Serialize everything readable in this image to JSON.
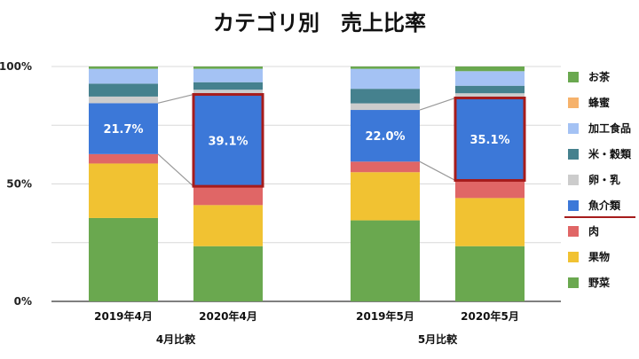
{
  "chart_data": {
    "type": "bar",
    "stacked": true,
    "normalized": true,
    "title": "カテゴリ別　売上比率",
    "yticks": [
      "0%",
      "50%",
      "100%"
    ],
    "ylim": [
      0,
      100
    ],
    "categories": [
      "2019年4月",
      "2020年4月",
      "2019年5月",
      "2020年5月"
    ],
    "groups": [
      {
        "label": "4月比較",
        "members": [
          0,
          1
        ]
      },
      {
        "label": "5月比較",
        "members": [
          2,
          3
        ]
      }
    ],
    "series": [
      {
        "name": "野菜",
        "color": "#6aa84f",
        "values": [
          35.5,
          23.5,
          34.5,
          23.5
        ]
      },
      {
        "name": "果物",
        "color": "#f1c232",
        "values": [
          23.2,
          17.5,
          20.5,
          20.5
        ]
      },
      {
        "name": "肉",
        "color": "#e06666",
        "values": [
          4.0,
          8.0,
          4.5,
          7.5
        ]
      },
      {
        "name": "魚介類",
        "color": "#3c78d8",
        "values": [
          21.7,
          39.1,
          22.0,
          35.1
        ]
      },
      {
        "name": "卵・乳",
        "color": "#cccccc",
        "values": [
          2.8,
          2.0,
          2.8,
          2.0
        ]
      },
      {
        "name": "米・穀類",
        "color": "#45818e",
        "values": [
          5.5,
          3.2,
          6.2,
          3.2
        ]
      },
      {
        "name": "加工食品",
        "color": "#a4c2f4",
        "values": [
          6.3,
          5.7,
          8.5,
          6.2
        ]
      },
      {
        "name": "蜂蜜",
        "color": "#f6b26b",
        "values": [
          0.0,
          0.0,
          0.0,
          0.0
        ]
      },
      {
        "name": "お茶",
        "color": "#6aa84f",
        "values": [
          1.0,
          1.0,
          1.0,
          2.0
        ]
      }
    ],
    "data_labels": [
      {
        "category": 0,
        "series": "魚介類",
        "text": "21.7%"
      },
      {
        "category": 1,
        "series": "魚介類",
        "text": "39.1%"
      },
      {
        "category": 2,
        "series": "魚介類",
        "text": "22.0%"
      },
      {
        "category": 3,
        "series": "魚介類",
        "text": "35.1%"
      }
    ],
    "highlight": {
      "series": "魚介類",
      "categories": [
        1,
        3
      ],
      "border_color": "#a61c1c"
    },
    "legend": {
      "position": "right",
      "order": [
        "お茶",
        "蜂蜜",
        "加工食品",
        "米・穀類",
        "卵・乳",
        "魚介類",
        "肉",
        "果物",
        "野菜"
      ],
      "divider_after": "魚介類"
    },
    "grid": true
  }
}
